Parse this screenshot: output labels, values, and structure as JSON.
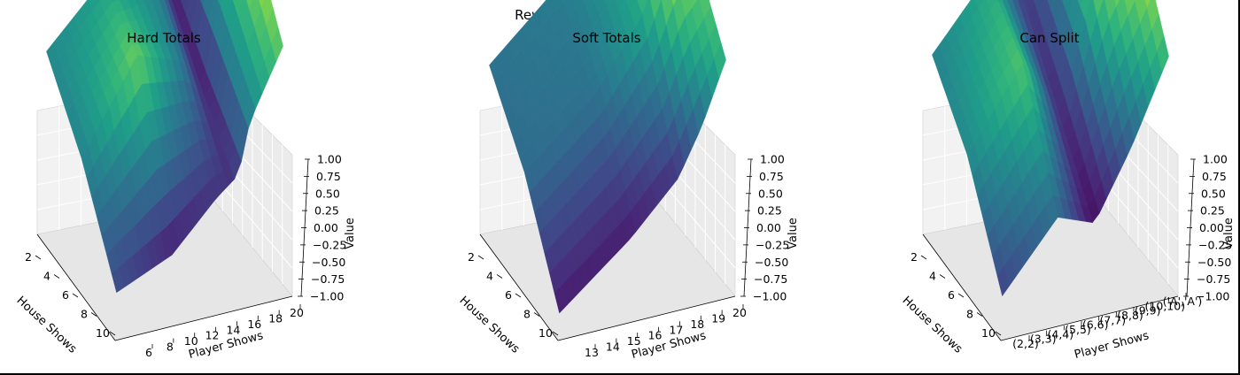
{
  "figure": {
    "suptitle": "Rewards Distributions"
  },
  "chart_data": [
    {
      "type": "surface3d",
      "title": "Hard Totals",
      "xlabel": "House Shows",
      "ylabel": "Player Shows",
      "zlabel": "Value",
      "x_ticks": [
        "2",
        "4",
        "6",
        "8",
        "10"
      ],
      "y_ticks": [
        "6",
        "8",
        "10",
        "12",
        "14",
        "16",
        "18",
        "20"
      ],
      "z_ticks": [
        "1.00",
        "0.75",
        "0.50",
        "0.25",
        "0.00",
        "−0.25",
        "−0.50",
        "−0.75",
        "−1.00"
      ],
      "zlim": [
        -1.0,
        1.0
      ],
      "colormap": "viridis",
      "surface": {
        "house_values": [
          2,
          6,
          10
        ],
        "player_values": [
          5,
          10,
          14,
          16,
          17,
          20
        ],
        "values": [
          [
            -0.05,
            0.12,
            -0.1,
            -0.95,
            -0.45,
            0.55
          ],
          [
            -0.1,
            0.55,
            -0.2,
            -0.95,
            -0.2,
            0.95
          ],
          [
            -0.55,
            -0.85,
            -0.7,
            -0.7,
            -0.1,
            0.5
          ]
        ]
      }
    },
    {
      "type": "surface3d",
      "title": "Soft Totals",
      "xlabel": "House Shows",
      "ylabel": "Player Shows",
      "zlabel": "Value",
      "x_ticks": [
        "2",
        "4",
        "6",
        "8",
        "10"
      ],
      "y_ticks": [
        "13",
        "14",
        "15",
        "16",
        "17",
        "18",
        "19",
        "20"
      ],
      "z_ticks": [
        "1.00",
        "0.75",
        "0.50",
        "0.25",
        "0.00",
        "−0.25",
        "−0.50",
        "−0.75",
        "−1.00"
      ],
      "zlim": [
        -1.0,
        1.0
      ],
      "colormap": "viridis",
      "surface": {
        "house_values": [
          2,
          6,
          10
        ],
        "player_values": [
          13,
          16,
          18,
          19,
          20
        ],
        "values": [
          [
            -0.25,
            -0.15,
            0.1,
            0.6,
            0.65
          ],
          [
            -0.3,
            -0.25,
            0.2,
            0.85,
            0.6
          ],
          [
            -0.85,
            -0.85,
            -0.7,
            -0.3,
            0.3
          ]
        ]
      }
    },
    {
      "type": "surface3d",
      "title": "Can Split",
      "xlabel": "House Shows",
      "ylabel": "Player Shows",
      "zlabel": "Value",
      "x_ticks": [
        "2",
        "4",
        "6",
        "8",
        "10"
      ],
      "y_ticks": [
        "(2,2)",
        "(3,3)",
        "(4,4)",
        "(5,5)",
        "(6,6)",
        "(7,7)",
        "(8,8)",
        "(9,9)",
        "(10,10)",
        "('A','A')"
      ],
      "z_ticks": [
        "1.00",
        "0.75",
        "0.50",
        "0.25",
        "0.00",
        "−0.25",
        "−0.50",
        "−0.75",
        "−1.00"
      ],
      "zlim": [
        -1.0,
        1.0
      ],
      "colormap": "viridis",
      "surface": {
        "house_values": [
          2,
          6,
          10
        ],
        "player_values": [
          1,
          4,
          6,
          8,
          10
        ],
        "values": [
          [
            -0.1,
            0.2,
            -0.7,
            0.2,
            0.4
          ],
          [
            -0.05,
            0.45,
            -0.85,
            0.55,
            1.0
          ],
          [
            -0.6,
            -0.3,
            -0.95,
            -0.4,
            0.35
          ]
        ]
      }
    }
  ]
}
